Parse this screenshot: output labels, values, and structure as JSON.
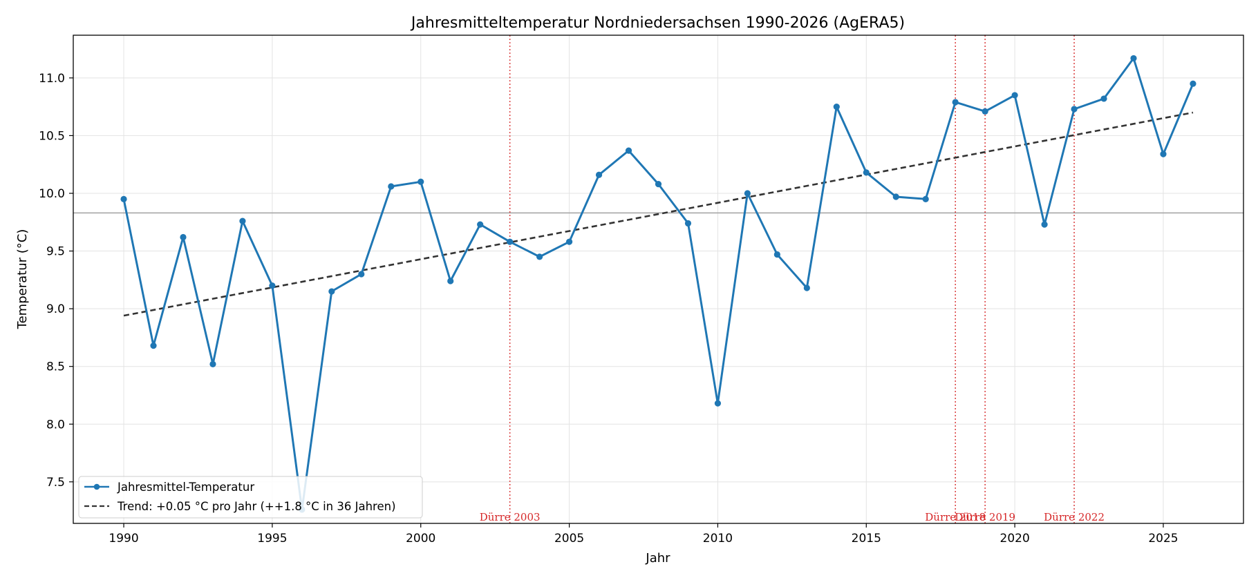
{
  "chart_data": {
    "type": "line",
    "title": "Jahresmitteltemperatur Nordniedersachsen 1990-2026 (AgERA5)",
    "xlabel": "Jahr",
    "ylabel": "Temperatur (°C)",
    "xlim": [
      1988.3,
      2027.7
    ],
    "ylim": [
      7.14,
      11.37
    ],
    "x_ticks": [
      1990,
      1995,
      2000,
      2005,
      2010,
      2015,
      2020,
      2025
    ],
    "y_ticks": [
      7.5,
      8.0,
      8.5,
      9.0,
      9.5,
      10.0,
      10.5,
      11.0
    ],
    "y_tick_labels": [
      "7.5",
      "8.0",
      "8.5",
      "9.0",
      "9.5",
      "10.0",
      "10.5",
      "11.0"
    ],
    "grid": true,
    "legend_position": "lower-left",
    "series": [
      {
        "name": "Jahresmittel-Temperatur",
        "color": "#1f77b4",
        "style": "line-with-markers",
        "x": [
          1990,
          1991,
          1992,
          1993,
          1994,
          1995,
          1996,
          1997,
          1998,
          1999,
          2000,
          2001,
          2002,
          2003,
          2004,
          2005,
          2006,
          2007,
          2008,
          2009,
          2010,
          2011,
          2012,
          2013,
          2014,
          2015,
          2016,
          2017,
          2018,
          2019,
          2020,
          2021,
          2022,
          2023,
          2024,
          2025,
          2026
        ],
        "y": [
          9.95,
          8.68,
          9.62,
          8.52,
          9.76,
          9.2,
          7.26,
          9.15,
          9.3,
          10.06,
          10.1,
          9.24,
          9.73,
          9.58,
          9.45,
          9.58,
          10.16,
          10.37,
          10.08,
          9.74,
          8.18,
          10.0,
          9.47,
          9.18,
          10.75,
          10.18,
          9.97,
          9.95,
          10.79,
          10.71,
          10.85,
          9.73,
          10.73,
          10.82,
          11.17,
          10.34,
          10.95
        ]
      },
      {
        "name": "Trend: +0.05 °C pro Jahr (++1.8 °C in 36 Jahren)",
        "color": "#333333",
        "style": "dashed",
        "x": [
          1990,
          2026
        ],
        "y": [
          8.94,
          10.7
        ]
      }
    ],
    "reference_line": {
      "y": 9.83,
      "color": "#a0a0a0"
    },
    "events": [
      {
        "x": 2003,
        "label": "Dürre 2003",
        "color": "#d62728"
      },
      {
        "x": 2018,
        "label": "Dürre 2018",
        "color": "#d62728"
      },
      {
        "x": 2019,
        "label": "Dürre 2019",
        "color": "#d62728"
      },
      {
        "x": 2022,
        "label": "Dürre 2022",
        "color": "#d62728"
      }
    ]
  }
}
